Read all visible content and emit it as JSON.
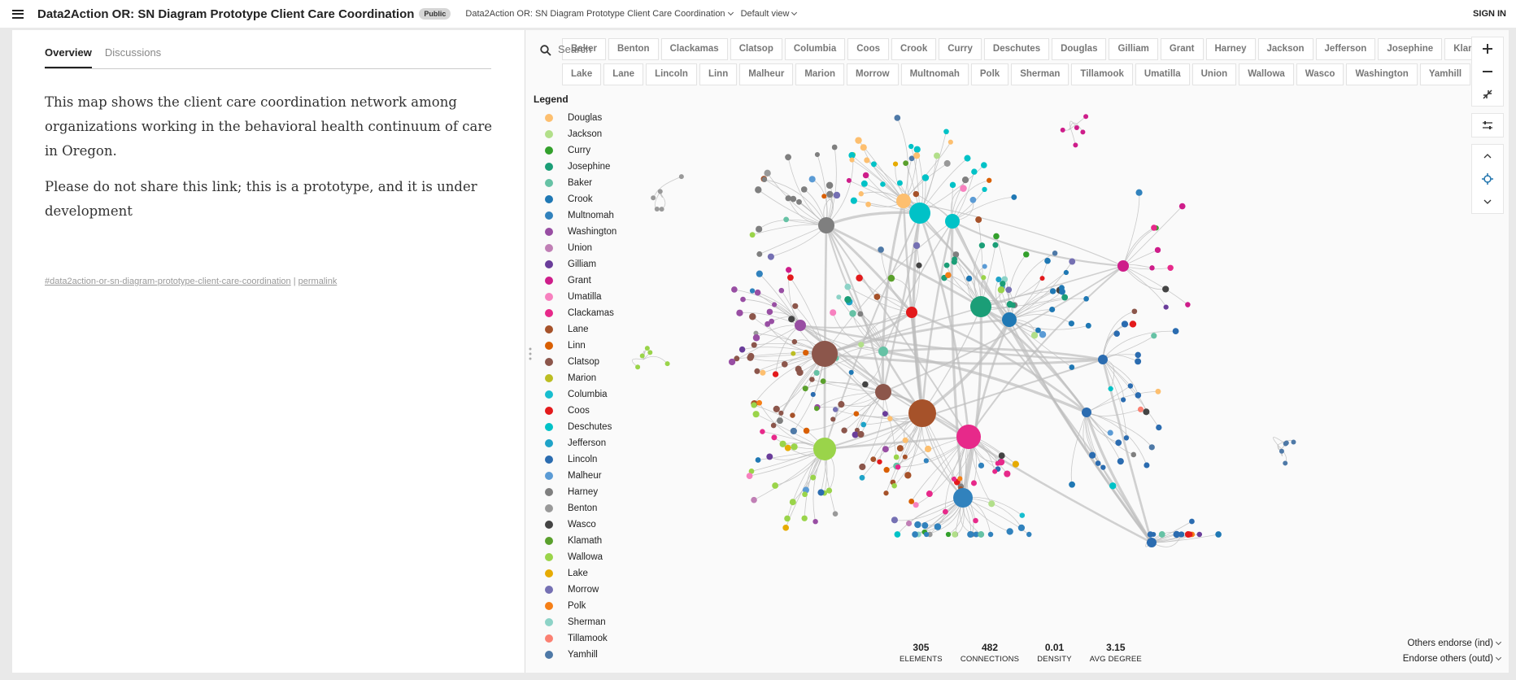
{
  "header": {
    "title": "Data2Action OR: SN Diagram Prototype Client Care Coordination",
    "badge": "Public",
    "breadcrumb": "Data2Action OR: SN Diagram Prototype Client Care Coordination",
    "view": "Default view",
    "sign_in": "SIGN IN"
  },
  "overview": {
    "tabs": [
      "Overview",
      "Discussions"
    ],
    "paragraph1": "This map shows the client care coordination network among organizations working in the behavioral health continuum of care in Oregon.",
    "paragraph2": "Please do not share this link; this is a prototype, and it is under development",
    "tag": "#data2action-or-sn-diagram-prototype-client-care-coordination",
    "separator": " | ",
    "permalink": "permalink"
  },
  "search": {
    "placeholder": "Search"
  },
  "filters": {
    "row1": [
      "Baker",
      "Benton",
      "Clackamas",
      "Clatsop",
      "Columbia",
      "Coos",
      "Crook",
      "Curry",
      "Deschutes",
      "Douglas",
      "Gilliam",
      "Grant",
      "Harney",
      "Jackson",
      "Jefferson",
      "Josephine",
      "Klamath"
    ],
    "row2": [
      "Lake",
      "Lane",
      "Lincoln",
      "Linn",
      "Malheur",
      "Marion",
      "Morrow",
      "Multnomah",
      "Polk",
      "Sherman",
      "Tillamook",
      "Umatilla",
      "Union",
      "Wallowa",
      "Wasco",
      "Washington",
      "Yamhill"
    ]
  },
  "legend": {
    "title": "Legend",
    "items": [
      {
        "label": "Douglas",
        "color": "#fdbf6f"
      },
      {
        "label": "Jackson",
        "color": "#b2df8a"
      },
      {
        "label": "Curry",
        "color": "#33a02c"
      },
      {
        "label": "Josephine",
        "color": "#1b9e77"
      },
      {
        "label": "Baker",
        "color": "#66c2a5"
      },
      {
        "label": "Crook",
        "color": "#1f78b4"
      },
      {
        "label": "Multnomah",
        "color": "#3182bd"
      },
      {
        "label": "Washington",
        "color": "#984ea3"
      },
      {
        "label": "Union",
        "color": "#c07fb5"
      },
      {
        "label": "Gilliam",
        "color": "#6a3d9a"
      },
      {
        "label": "Grant",
        "color": "#ce1d8a"
      },
      {
        "label": "Umatilla",
        "color": "#f781bf"
      },
      {
        "label": "Clackamas",
        "color": "#e7298a"
      },
      {
        "label": "Lane",
        "color": "#a6522a"
      },
      {
        "label": "Linn",
        "color": "#d95f02"
      },
      {
        "label": "Clatsop",
        "color": "#8c564b"
      },
      {
        "label": "Marion",
        "color": "#bcbd22"
      },
      {
        "label": "Columbia",
        "color": "#17becf"
      },
      {
        "label": "Coos",
        "color": "#e31a1c"
      },
      {
        "label": "Deschutes",
        "color": "#00c2c7"
      },
      {
        "label": "Jefferson",
        "color": "#1fa3c8"
      },
      {
        "label": "Lincoln",
        "color": "#2b6cb0"
      },
      {
        "label": "Malheur",
        "color": "#5b9bd5"
      },
      {
        "label": "Harney",
        "color": "#7f7f7f"
      },
      {
        "label": "Benton",
        "color": "#999999"
      },
      {
        "label": "Wasco",
        "color": "#444444"
      },
      {
        "label": "Klamath",
        "color": "#5aa02c"
      },
      {
        "label": "Wallowa",
        "color": "#9ad44a"
      },
      {
        "label": "Lake",
        "color": "#e6ab02"
      },
      {
        "label": "Morrow",
        "color": "#7570b3"
      },
      {
        "label": "Polk",
        "color": "#f57f17"
      },
      {
        "label": "Sherman",
        "color": "#8dd3c7"
      },
      {
        "label": "Tillamook",
        "color": "#fb8072"
      },
      {
        "label": "Yamhill",
        "color": "#4e79a7"
      }
    ]
  },
  "stats": [
    {
      "value": "305",
      "label": "ELEMENTS"
    },
    {
      "value": "482",
      "label": "CONNECTIONS"
    },
    {
      "value": "0.01",
      "label": "DENSITY"
    },
    {
      "value": "3.15",
      "label": "AVG DEGREE"
    }
  ],
  "endorse": {
    "indegree": "Others endorse (ind)",
    "outdegree": "Endorse others (outd)"
  },
  "icons": {
    "search": "search-icon",
    "zoom_in": "plus-icon",
    "zoom_out": "minus-icon",
    "fit": "compress-icon",
    "settings": "sliders-icon",
    "up": "chevron-up-icon",
    "focus": "crosshair-icon",
    "down": "chevron-down-icon"
  }
}
